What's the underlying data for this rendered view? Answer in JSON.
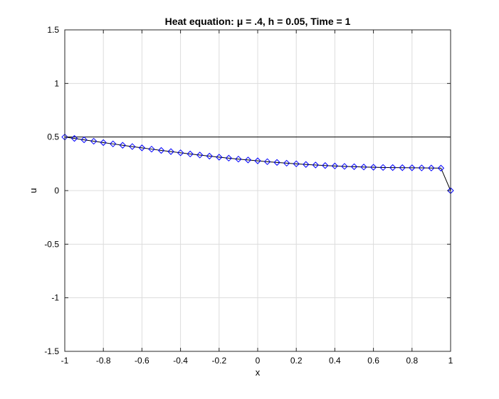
{
  "chart_data": {
    "type": "line",
    "title": "Heat equation: μ = .4, h = 0.05, Time = 1",
    "xlabel": "x",
    "ylabel": "u",
    "xlim": [
      -1,
      1
    ],
    "ylim": [
      -1.5,
      1.5
    ],
    "x_ticks": [
      -1,
      -0.8,
      -0.6,
      -0.4,
      -0.2,
      0,
      0.2,
      0.4,
      0.6,
      0.8,
      1
    ],
    "x_tick_labels": [
      "-1",
      "-0.8",
      "-0.6",
      "-0.4",
      "-0.2",
      "0",
      "0.2",
      "0.4",
      "0.6",
      "0.8",
      "1"
    ],
    "y_ticks": [
      -1.5,
      -1,
      -0.5,
      0,
      0.5,
      1,
      1.5
    ],
    "y_tick_labels": [
      "-1.5",
      "-1",
      "-0.5",
      "0",
      "0.5",
      "1",
      "1.5"
    ],
    "grid": true,
    "series": [
      {
        "line_color": "#000000",
        "marker": "none",
        "x": [
          -1,
          0.95,
          1
        ],
        "y": [
          0.5,
          0.5,
          0.5
        ]
      },
      {
        "line_color": "#000000",
        "marker": "diamond",
        "marker_color": "#0000ff",
        "x": [
          -1,
          -0.95,
          -0.9,
          -0.85,
          -0.8,
          -0.75,
          -0.7,
          -0.65,
          -0.6,
          -0.55,
          -0.5,
          -0.45,
          -0.4,
          -0.35,
          -0.3,
          -0.25,
          -0.2,
          -0.15,
          -0.1,
          -0.05,
          0,
          0.05,
          0.1,
          0.15,
          0.2,
          0.25,
          0.3,
          0.35,
          0.4,
          0.45,
          0.5,
          0.55,
          0.6,
          0.65,
          0.7,
          0.75,
          0.8,
          0.85,
          0.9,
          0.95,
          1
        ],
        "y": [
          0.5,
          0.487,
          0.474,
          0.461,
          0.448,
          0.436,
          0.423,
          0.411,
          0.399,
          0.387,
          0.375,
          0.364,
          0.353,
          0.342,
          0.332,
          0.322,
          0.312,
          0.303,
          0.294,
          0.286,
          0.278,
          0.27,
          0.263,
          0.256,
          0.25,
          0.244,
          0.239,
          0.234,
          0.23,
          0.226,
          0.223,
          0.22,
          0.218,
          0.216,
          0.215,
          0.214,
          0.213,
          0.212,
          0.211,
          0.21,
          0
        ]
      }
    ]
  }
}
